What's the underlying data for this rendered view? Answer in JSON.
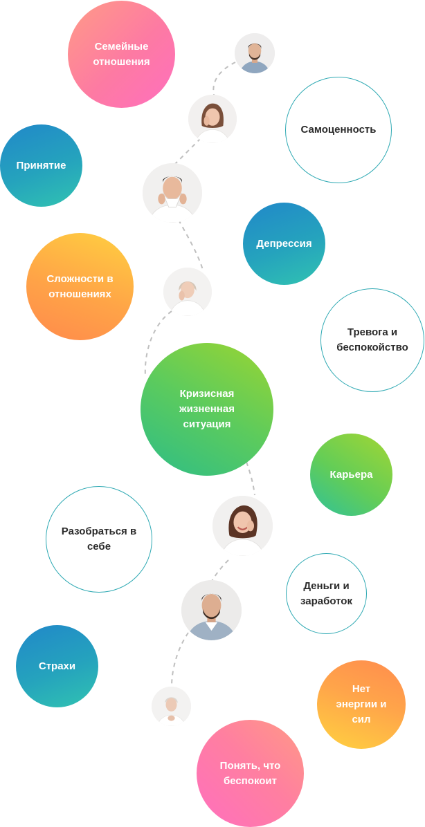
{
  "topics": [
    {
      "id": "family",
      "label": "Семейные отношения"
    },
    {
      "id": "self-worth",
      "label": "Самоценность"
    },
    {
      "id": "acceptance",
      "label": "Принятие"
    },
    {
      "id": "depression",
      "label": "Депрессия"
    },
    {
      "id": "relationships",
      "label": "Сложности в отношениях"
    },
    {
      "id": "anxiety",
      "label": "Тревога и беспокойство"
    },
    {
      "id": "crisis",
      "label": "Кризисная жизненная ситуация"
    },
    {
      "id": "career",
      "label": "Карьера"
    },
    {
      "id": "self-understanding",
      "label": "Разобраться в себе"
    },
    {
      "id": "money",
      "label": "Деньги и заработок"
    },
    {
      "id": "fears",
      "label": "Страхи"
    },
    {
      "id": "energy",
      "label": "Нет энергии и сил"
    },
    {
      "id": "understand",
      "label": "Понять, что беспокоит"
    }
  ],
  "colors": {
    "outline_border": "#2ea9b3",
    "text_on_white": "#2b2b2b",
    "text_on_color": "#ffffff",
    "dashed_path": "#bfbfbf"
  },
  "people": [
    {
      "id": "man-bearded-top",
      "icon": "person-avatar-icon"
    },
    {
      "id": "woman-hand-face",
      "icon": "person-avatar-icon"
    },
    {
      "id": "man-shouting",
      "icon": "person-avatar-icon"
    },
    {
      "id": "woman-tired",
      "icon": "person-avatar-icon"
    },
    {
      "id": "woman-smiling",
      "icon": "person-avatar-icon"
    },
    {
      "id": "man-bearded-center",
      "icon": "person-avatar-icon"
    },
    {
      "id": "woman-elderly",
      "icon": "person-avatar-icon"
    }
  ]
}
